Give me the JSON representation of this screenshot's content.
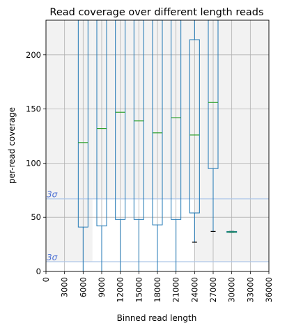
{
  "chart_data": {
    "type": "box",
    "title": "Read coverage over different length reads",
    "xlabel": "Binned read length",
    "ylabel": "per-read coverage",
    "xlim": [
      0,
      36000
    ],
    "ylim": [
      0,
      232
    ],
    "x_ticks": [
      "0",
      "3000",
      "6000",
      "9000",
      "12000",
      "15000",
      "18000",
      "21000",
      "24000",
      "27000",
      "30000",
      "33000",
      "36000"
    ],
    "y_ticks": [
      "0",
      "50",
      "100",
      "150",
      "200"
    ],
    "grid": true,
    "shaded_regions": [
      {
        "x0": 0,
        "x1": 7500,
        "y0": 9,
        "y1": 232
      },
      {
        "x0": 7500,
        "x1": 24000,
        "y0": 67,
        "y1": 232
      },
      {
        "x0": 24000,
        "x1": 36000,
        "y0": 9,
        "y1": 232
      }
    ],
    "threshold_lines": [
      {
        "y": 67,
        "label": "3σ"
      },
      {
        "y": 9,
        "label": "3σ"
      }
    ],
    "boxes": [
      {
        "x": 6000,
        "q1": 41,
        "median": 119,
        "q3": 232,
        "whisker_low": 0,
        "whisker_high": 232
      },
      {
        "x": 9000,
        "q1": 42,
        "median": 132,
        "q3": 232,
        "whisker_low": 0,
        "whisker_high": 232
      },
      {
        "x": 12000,
        "q1": 48,
        "median": 147,
        "q3": 232,
        "whisker_low": 0,
        "whisker_high": 232
      },
      {
        "x": 15000,
        "q1": 48,
        "median": 139,
        "q3": 232,
        "whisker_low": 0,
        "whisker_high": 232
      },
      {
        "x": 18000,
        "q1": 43,
        "median": 128,
        "q3": 232,
        "whisker_low": 0,
        "whisker_high": 232
      },
      {
        "x": 21000,
        "q1": 48,
        "median": 142,
        "q3": 232,
        "whisker_low": 0,
        "whisker_high": 232
      },
      {
        "x": 24000,
        "q1": 54,
        "median": 126,
        "q3": 214,
        "whisker_low": 27,
        "whisker_high": 232
      },
      {
        "x": 27000,
        "q1": 95,
        "median": 156,
        "q3": 232,
        "whisker_low": 37,
        "whisker_high": 232
      },
      {
        "x": 30000,
        "q1": 36,
        "median": 36.5,
        "q3": 37,
        "whisker_low": 36,
        "whisker_high": 37
      }
    ],
    "colors": {
      "box": "#1f77b4",
      "median": "#2ca02c",
      "whisker_cap": "#000000",
      "shade": "#f2f2f2",
      "grid": "#b0b0b0",
      "threshold": "#aec7e8",
      "threshold_label": "#4a6fd4"
    }
  }
}
